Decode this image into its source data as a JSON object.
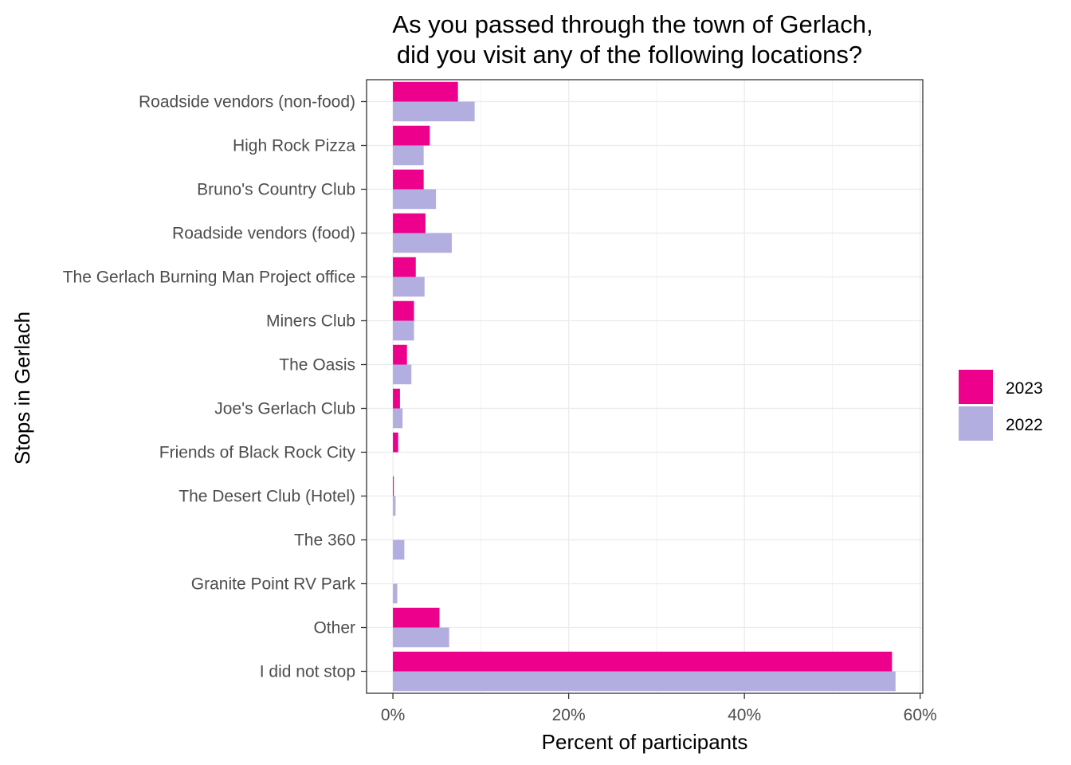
{
  "chart_data": {
    "type": "bar",
    "orientation": "horizontal",
    "title_lines": [
      "As you passed through the town of Gerlach,",
      "did you visit any of the following locations?"
    ],
    "xlabel": "Percent of participants",
    "ylabel": "Stops in Gerlach",
    "xlim": [
      -3,
      60.3
    ],
    "xticks": [
      0,
      20,
      40,
      60
    ],
    "xtick_labels": [
      "0%",
      "20%",
      "40%",
      "60%"
    ],
    "grid": true,
    "legend_position": "right",
    "categories": [
      "Roadside vendors (non-food)",
      "High Rock Pizza",
      "Bruno's Country Club",
      "Roadside vendors (food)",
      "The Gerlach Burning Man Project office",
      "Miners Club",
      "The Oasis",
      "Joe's Gerlach Club",
      "Friends of Black Rock City",
      "The Desert Club (Hotel)",
      "The 360",
      "Granite Point RV Park",
      "Other",
      "I did not stop"
    ],
    "series": [
      {
        "name": "2023",
        "color": "#ec008c",
        "values": [
          7.4,
          4.2,
          3.5,
          3.7,
          2.6,
          2.4,
          1.6,
          0.8,
          0.6,
          0.1,
          0,
          0,
          5.3,
          56.8
        ]
      },
      {
        "name": "2022",
        "color": "#b3aee0",
        "values": [
          9.3,
          3.5,
          4.9,
          6.7,
          3.6,
          2.4,
          2.1,
          1.1,
          0,
          0.3,
          1.3,
          0.5,
          6.4,
          57.2
        ]
      }
    ]
  }
}
